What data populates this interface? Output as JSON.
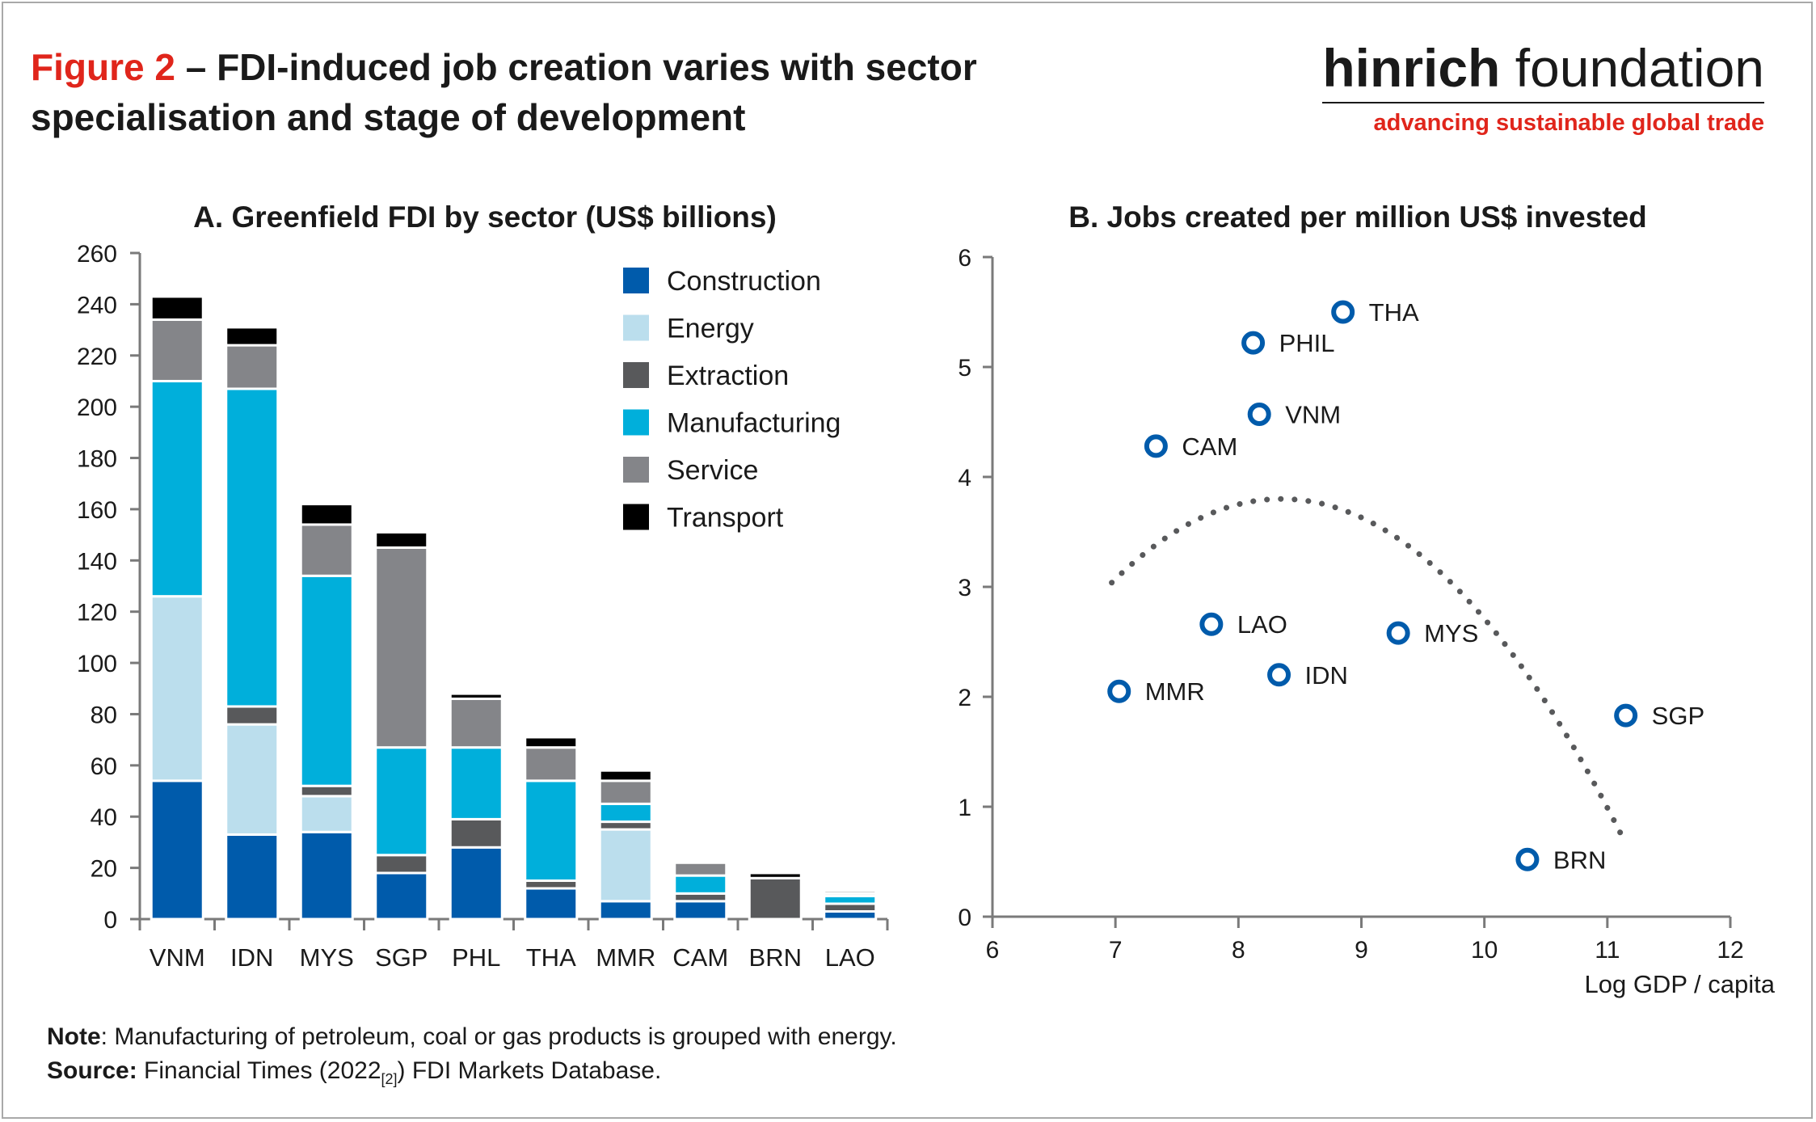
{
  "header": {
    "figure_label": "Figure 2",
    "title_rest": "– FDI-induced job creation varies with sector specialisation and stage of development"
  },
  "brand": {
    "name_bold": "hinrich",
    "name_light": " foundation",
    "tagline": "advancing sustainable global trade"
  },
  "notes": {
    "note_label": "Note",
    "note_text": ": Manufacturing of petroleum, coal or gas products is grouped with energy.",
    "source_label": "Source:",
    "source_text_1": " Financial Times (2022",
    "source_ref": "[2]",
    "source_text_2": ") FDI Markets Database."
  },
  "colors": {
    "Construction": "#005bab",
    "Energy": "#bbdeed",
    "Extraction": "#58595b",
    "Manufacturing": "#00afdb",
    "Service": "#848589",
    "Transport": "#000000",
    "marker": "#005bab",
    "curve": "#58595b"
  },
  "chart_data": [
    {
      "type": "bar",
      "stacked": true,
      "title": "A. Greenfield FDI by sector (US$ billions)",
      "categories": [
        "VNM",
        "IDN",
        "MYS",
        "SGP",
        "PHL",
        "THA",
        "MMR",
        "CAM",
        "BRN",
        "LAO"
      ],
      "series": [
        {
          "name": "Construction",
          "values": [
            54,
            33,
            34,
            18,
            28,
            12,
            7,
            7,
            0,
            3
          ]
        },
        {
          "name": "Energy",
          "values": [
            72,
            43,
            14,
            0,
            0,
            0,
            28,
            0,
            0,
            0
          ]
        },
        {
          "name": "Extraction",
          "values": [
            0,
            7,
            4,
            7,
            11,
            3,
            3,
            3,
            16,
            3
          ]
        },
        {
          "name": "Manufacturing",
          "values": [
            84,
            124,
            82,
            42,
            28,
            39,
            7,
            7,
            0,
            3
          ]
        },
        {
          "name": "Service",
          "values": [
            24,
            17,
            20,
            78,
            19,
            13,
            9,
            5,
            0,
            1
          ]
        },
        {
          "name": "Transport",
          "values": [
            9,
            7,
            8,
            6,
            2,
            4,
            4,
            0,
            2,
            1
          ]
        }
      ],
      "ylim": [
        0,
        260
      ],
      "yticks": [
        0,
        20,
        40,
        60,
        80,
        100,
        120,
        140,
        160,
        180,
        200,
        220,
        240,
        260
      ],
      "legend": "top-right"
    },
    {
      "type": "scatter",
      "title": "B. Jobs created per million US$ invested",
      "xlabel": "Log GDP / capita",
      "xlim": [
        6,
        12
      ],
      "ylim": [
        0,
        6
      ],
      "xticks": [
        6,
        7,
        8,
        9,
        10,
        11,
        12
      ],
      "yticks": [
        0,
        1,
        2,
        3,
        4,
        5,
        6
      ],
      "points": [
        {
          "label": "THA",
          "x": 8.85,
          "y": 5.5
        },
        {
          "label": "PHIL",
          "x": 8.12,
          "y": 5.22
        },
        {
          "label": "VNM",
          "x": 8.17,
          "y": 4.57
        },
        {
          "label": "CAM",
          "x": 7.33,
          "y": 4.28
        },
        {
          "label": "LAO",
          "x": 7.78,
          "y": 2.66
        },
        {
          "label": "MYS",
          "x": 9.3,
          "y": 2.58
        },
        {
          "label": "IDN",
          "x": 8.33,
          "y": 2.2
        },
        {
          "label": "MMR",
          "x": 7.03,
          "y": 2.05
        },
        {
          "label": "SGP",
          "x": 11.15,
          "y": 1.83
        },
        {
          "label": "BRN",
          "x": 10.35,
          "y": 0.52
        }
      ],
      "trend": {
        "type": "quadratic",
        "peak_x": 8.35,
        "peak_y": 3.8,
        "a": -0.4,
        "x_range": [
          6.97,
          11.15
        ]
      }
    }
  ]
}
